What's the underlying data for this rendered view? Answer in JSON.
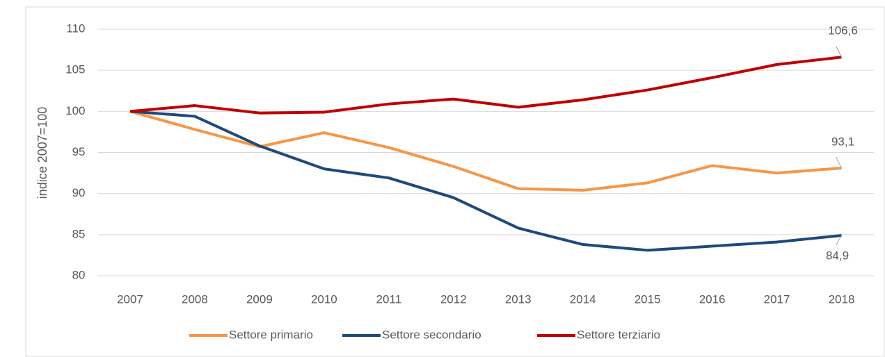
{
  "chart_data": {
    "type": "line",
    "categories": [
      "2007",
      "2008",
      "2009",
      "2010",
      "2011",
      "2012",
      "2013",
      "2014",
      "2015",
      "2016",
      "2017",
      "2018"
    ],
    "series": [
      {
        "name": "Settore primario",
        "color": "#f79646",
        "values": [
          100,
          97.8,
          95.7,
          97.4,
          95.6,
          93.3,
          90.6,
          90.4,
          91.3,
          93.4,
          92.5,
          93.1
        ],
        "value_labels": [
          null,
          null,
          null,
          null,
          null,
          null,
          null,
          null,
          null,
          null,
          null,
          "93,1"
        ]
      },
      {
        "name": "Settore secondario",
        "color": "#1f497d",
        "values": [
          100,
          99.4,
          95.8,
          93.0,
          91.9,
          89.5,
          85.8,
          83.8,
          83.1,
          83.6,
          84.1,
          84.9
        ],
        "value_labels": [
          null,
          null,
          null,
          null,
          null,
          null,
          null,
          null,
          null,
          null,
          null,
          "84,9"
        ]
      },
      {
        "name": "Settore terziario",
        "color": "#c00000",
        "values": [
          100,
          100.7,
          99.8,
          99.9,
          100.9,
          101.5,
          100.5,
          101.4,
          102.6,
          104.1,
          105.7,
          106.6
        ],
        "value_labels": [
          null,
          null,
          null,
          null,
          null,
          null,
          null,
          null,
          null,
          null,
          null,
          "106,6"
        ]
      }
    ],
    "y_label": "indice 2007=100",
    "ylim": [
      80,
      110
    ],
    "yticks": [
      80,
      85,
      90,
      95,
      100,
      105,
      110
    ],
    "grid": true,
    "legend": "bottom"
  }
}
